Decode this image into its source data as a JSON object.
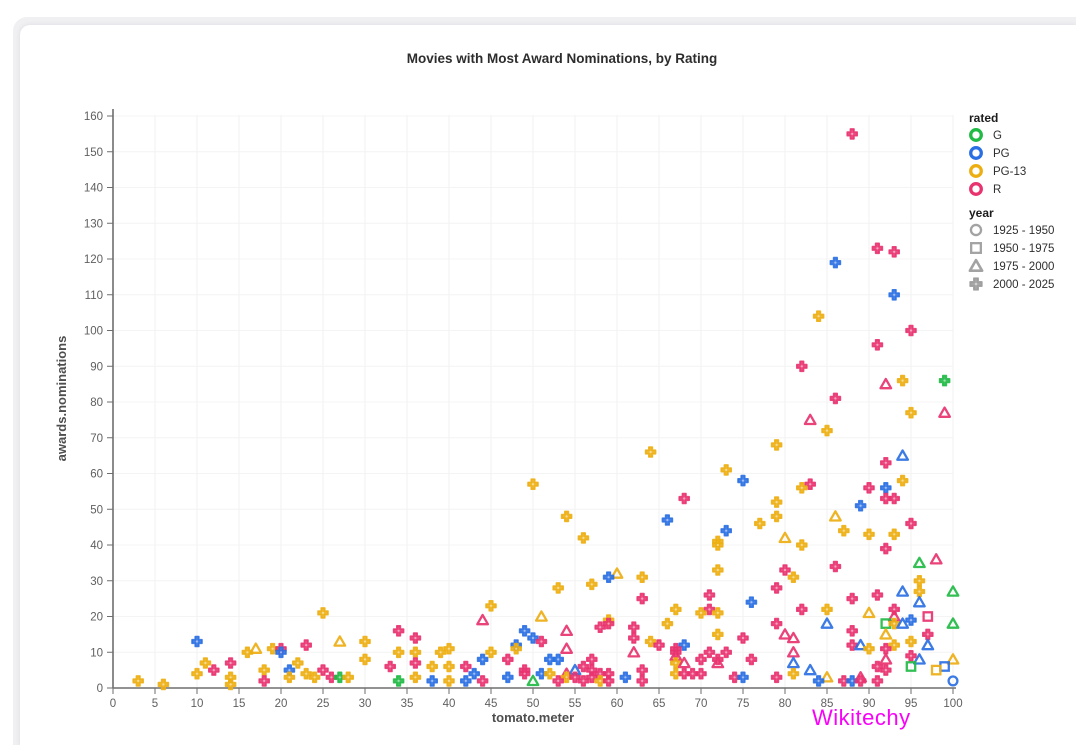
{
  "page": {
    "watermark": "Wikitechy",
    "watermark_color": "#f900f9"
  },
  "chart_data": {
    "type": "scatter",
    "title": "Movies with Most Award Nominations, by Rating",
    "xlabel": "tomato.meter",
    "ylabel": "awards.nominations",
    "xlim": [
      0,
      100
    ],
    "ylim": [
      0,
      160
    ],
    "xticks": [
      0,
      5,
      10,
      15,
      20,
      25,
      30,
      35,
      40,
      45,
      50,
      55,
      60,
      65,
      70,
      75,
      80,
      85,
      90,
      95,
      100
    ],
    "yticks": [
      0,
      10,
      20,
      30,
      40,
      50,
      60,
      70,
      80,
      90,
      100,
      110,
      120,
      130,
      140,
      150,
      160
    ],
    "grid": true,
    "legend_position": "top-right",
    "legend": {
      "rated": {
        "title": "rated",
        "items": [
          {
            "label": "G",
            "color": "#21ba45"
          },
          {
            "label": "PG",
            "color": "#2b70e3"
          },
          {
            "label": "PG-13",
            "color": "#edae12"
          },
          {
            "label": "R",
            "color": "#e8336f"
          }
        ]
      },
      "year": {
        "title": "year",
        "marker_color": "#9b9b9b",
        "items": [
          {
            "label": "1925 - 1950",
            "shape": "circle",
            "key": "o"
          },
          {
            "label": "1950 - 1975",
            "shape": "square",
            "key": "s"
          },
          {
            "label": "1975 - 2000",
            "shape": "triangle",
            "key": "t"
          },
          {
            "label": "2000 - 2025",
            "shape": "cross",
            "key": "c"
          }
        ]
      }
    },
    "points": [
      [
        88,
        155,
        "R",
        "c"
      ],
      [
        91,
        123,
        "R",
        "c"
      ],
      [
        93,
        122,
        "R",
        "c"
      ],
      [
        86,
        119,
        "PG",
        "c"
      ],
      [
        93,
        110,
        "PG",
        "c"
      ],
      [
        84,
        104,
        "PG-13",
        "c"
      ],
      [
        95,
        100,
        "R",
        "c"
      ],
      [
        91,
        96,
        "R",
        "c"
      ],
      [
        82,
        90,
        "R",
        "c"
      ],
      [
        99,
        86,
        "G",
        "c"
      ],
      [
        94,
        86,
        "PG-13",
        "c"
      ],
      [
        92,
        85,
        "R",
        "t"
      ],
      [
        86,
        81,
        "R",
        "c"
      ],
      [
        95,
        77,
        "PG-13",
        "c"
      ],
      [
        99,
        77,
        "R",
        "t"
      ],
      [
        83,
        75,
        "R",
        "t"
      ],
      [
        85,
        72,
        "PG-13",
        "c"
      ],
      [
        79,
        68,
        "PG-13",
        "c"
      ],
      [
        64,
        66,
        "PG-13",
        "c"
      ],
      [
        94,
        65,
        "PG",
        "t"
      ],
      [
        92,
        63,
        "R",
        "c"
      ],
      [
        73,
        61,
        "PG-13",
        "c"
      ],
      [
        75,
        58,
        "PG",
        "c"
      ],
      [
        94,
        58,
        "PG-13",
        "c"
      ],
      [
        83,
        57,
        "R",
        "c"
      ],
      [
        50,
        57,
        "PG-13",
        "c"
      ],
      [
        82,
        56,
        "PG-13",
        "c"
      ],
      [
        90,
        56,
        "R",
        "c"
      ],
      [
        92,
        56,
        "PG",
        "c"
      ],
      [
        92,
        53,
        "R",
        "c"
      ],
      [
        93,
        53,
        "R",
        "c"
      ],
      [
        68,
        53,
        "R",
        "c"
      ],
      [
        89,
        51,
        "PG",
        "c"
      ],
      [
        79,
        52,
        "PG-13",
        "c"
      ],
      [
        79,
        48,
        "PG-13",
        "c"
      ],
      [
        54,
        48,
        "PG-13",
        "c"
      ],
      [
        86,
        48,
        "PG-13",
        "t"
      ],
      [
        66,
        47,
        "PG",
        "c"
      ],
      [
        77,
        46,
        "PG-13",
        "c"
      ],
      [
        95,
        46,
        "R",
        "c"
      ],
      [
        73,
        44,
        "PG",
        "c"
      ],
      [
        87,
        44,
        "PG-13",
        "c"
      ],
      [
        90,
        43,
        "PG-13",
        "c"
      ],
      [
        93,
        43,
        "PG-13",
        "c"
      ],
      [
        56,
        42,
        "PG-13",
        "c"
      ],
      [
        80,
        42,
        "PG-13",
        "t"
      ],
      [
        72,
        41,
        "PG-13",
        "c"
      ],
      [
        72,
        40,
        "PG-13",
        "c"
      ],
      [
        82,
        40,
        "PG-13",
        "c"
      ],
      [
        92,
        39,
        "R",
        "c"
      ],
      [
        98,
        36,
        "R",
        "t"
      ],
      [
        96,
        35,
        "G",
        "t"
      ],
      [
        86,
        34,
        "R",
        "c"
      ],
      [
        80,
        33,
        "R",
        "c"
      ],
      [
        72,
        33,
        "PG-13",
        "c"
      ],
      [
        60,
        32,
        "PG-13",
        "t"
      ],
      [
        59,
        31,
        "PG",
        "c"
      ],
      [
        63,
        31,
        "PG-13",
        "c"
      ],
      [
        81,
        31,
        "PG-13",
        "c"
      ],
      [
        96,
        30,
        "PG-13",
        "c"
      ],
      [
        57,
        29,
        "PG-13",
        "c"
      ],
      [
        53,
        28,
        "PG-13",
        "c"
      ],
      [
        79,
        28,
        "R",
        "c"
      ],
      [
        100,
        27,
        "G",
        "t"
      ],
      [
        94,
        27,
        "PG",
        "t"
      ],
      [
        96,
        27,
        "PG-13",
        "c"
      ],
      [
        71,
        26,
        "R",
        "c"
      ],
      [
        91,
        26,
        "R",
        "c"
      ],
      [
        63,
        25,
        "R",
        "c"
      ],
      [
        88,
        25,
        "R",
        "c"
      ],
      [
        76,
        24,
        "PG",
        "c"
      ],
      [
        96,
        24,
        "PG",
        "t"
      ],
      [
        45,
        23,
        "PG-13",
        "c"
      ],
      [
        93,
        22,
        "R",
        "c"
      ],
      [
        85,
        22,
        "PG-13",
        "c"
      ],
      [
        82,
        22,
        "R",
        "c"
      ],
      [
        71,
        22,
        "R",
        "c"
      ],
      [
        67,
        22,
        "PG-13",
        "c"
      ],
      [
        70,
        21,
        "PG-13",
        "c"
      ],
      [
        72,
        21,
        "PG-13",
        "c"
      ],
      [
        25,
        21,
        "PG-13",
        "c"
      ],
      [
        90,
        21,
        "PG-13",
        "t"
      ],
      [
        51,
        20,
        "PG-13",
        "t"
      ],
      [
        93,
        20,
        "R",
        "t"
      ],
      [
        97,
        20,
        "R",
        "s"
      ],
      [
        95,
        19,
        "PG",
        "c"
      ],
      [
        44,
        19,
        "R",
        "t"
      ],
      [
        59,
        19,
        "PG-13",
        "c"
      ],
      [
        59,
        18,
        "R",
        "c"
      ],
      [
        58,
        17,
        "R",
        "c"
      ],
      [
        66,
        18,
        "PG-13",
        "c"
      ],
      [
        79,
        18,
        "R",
        "c"
      ],
      [
        85,
        18,
        "PG",
        "t"
      ],
      [
        92,
        18,
        "G",
        "s"
      ],
      [
        93,
        18,
        "PG-13",
        "c"
      ],
      [
        94,
        18,
        "PG",
        "t"
      ],
      [
        100,
        18,
        "G",
        "t"
      ],
      [
        62,
        17,
        "R",
        "c"
      ],
      [
        49,
        16,
        "PG",
        "c"
      ],
      [
        54,
        16,
        "R",
        "t"
      ],
      [
        34,
        16,
        "R",
        "c"
      ],
      [
        88,
        16,
        "R",
        "c"
      ],
      [
        92,
        15,
        "PG-13",
        "t"
      ],
      [
        80,
        15,
        "R",
        "t"
      ],
      [
        72,
        15,
        "PG-13",
        "c"
      ],
      [
        97,
        15,
        "R",
        "c"
      ],
      [
        50,
        14,
        "PG",
        "c"
      ],
      [
        36,
        14,
        "R",
        "c"
      ],
      [
        62,
        14,
        "R",
        "c"
      ],
      [
        75,
        14,
        "R",
        "c"
      ],
      [
        81,
        14,
        "R",
        "t"
      ],
      [
        64,
        13,
        "PG-13",
        "c"
      ],
      [
        10,
        13,
        "PG",
        "c"
      ],
      [
        23,
        12,
        "R",
        "c"
      ],
      [
        27,
        13,
        "PG-13",
        "t"
      ],
      [
        30,
        13,
        "PG-13",
        "c"
      ],
      [
        51,
        13,
        "R",
        "c"
      ],
      [
        95,
        13,
        "PG-13",
        "c"
      ],
      [
        48,
        12,
        "PG",
        "c"
      ],
      [
        65,
        12,
        "R",
        "c"
      ],
      [
        68,
        12,
        "PG",
        "c"
      ],
      [
        88,
        12,
        "R",
        "c"
      ],
      [
        89,
        12,
        "PG",
        "t"
      ],
      [
        93,
        12,
        "PG-13",
        "c"
      ],
      [
        97,
        12,
        "PG",
        "t"
      ],
      [
        16,
        10,
        "PG-13",
        "c"
      ],
      [
        17,
        11,
        "PG-13",
        "t"
      ],
      [
        19,
        11,
        "PG-13",
        "c"
      ],
      [
        20,
        11,
        "R",
        "c"
      ],
      [
        40,
        11,
        "PG-13",
        "c"
      ],
      [
        48,
        11,
        "PG-13",
        "c"
      ],
      [
        54,
        11,
        "R",
        "t"
      ],
      [
        67,
        11,
        "R",
        "c"
      ],
      [
        90,
        11,
        "PG-13",
        "c"
      ],
      [
        92,
        11,
        "R",
        "c"
      ],
      [
        20,
        10,
        "PG",
        "c"
      ],
      [
        34,
        10,
        "PG-13",
        "c"
      ],
      [
        36,
        10,
        "PG-13",
        "c"
      ],
      [
        39,
        10,
        "PG-13",
        "c"
      ],
      [
        45,
        10,
        "PG-13",
        "c"
      ],
      [
        62,
        10,
        "R",
        "t"
      ],
      [
        67,
        10,
        "R",
        "c"
      ],
      [
        71,
        10,
        "R",
        "c"
      ],
      [
        73,
        10,
        "R",
        "c"
      ],
      [
        81,
        10,
        "R",
        "t"
      ],
      [
        11,
        7,
        "PG-13",
        "c"
      ],
      [
        14,
        7,
        "R",
        "c"
      ],
      [
        22,
        7,
        "PG-13",
        "c"
      ],
      [
        36,
        7,
        "R",
        "c"
      ],
      [
        47,
        8,
        "R",
        "c"
      ],
      [
        44,
        8,
        "PG",
        "c"
      ],
      [
        52,
        8,
        "PG",
        "c"
      ],
      [
        53,
        8,
        "PG",
        "c"
      ],
      [
        57,
        8,
        "R",
        "c"
      ],
      [
        30,
        8,
        "PG-13",
        "c"
      ],
      [
        70,
        8,
        "R",
        "c"
      ],
      [
        72,
        8,
        "R",
        "c"
      ],
      [
        76,
        8,
        "R",
        "c"
      ],
      [
        92,
        8,
        "R",
        "t"
      ],
      [
        96,
        8,
        "PG",
        "t"
      ],
      [
        100,
        8,
        "PG-13",
        "t"
      ],
      [
        67,
        9,
        "R",
        "t"
      ],
      [
        95,
        9,
        "R",
        "c"
      ],
      [
        12,
        5,
        "R",
        "c"
      ],
      [
        18,
        5,
        "PG-13",
        "c"
      ],
      [
        21,
        5,
        "PG",
        "c"
      ],
      [
        25,
        5,
        "R",
        "c"
      ],
      [
        38,
        6,
        "PG-13",
        "c"
      ],
      [
        40,
        6,
        "PG-13",
        "c"
      ],
      [
        42,
        6,
        "R",
        "c"
      ],
      [
        33,
        6,
        "R",
        "c"
      ],
      [
        49,
        5,
        "R",
        "c"
      ],
      [
        56,
        6,
        "R",
        "c"
      ],
      [
        91,
        6,
        "R",
        "c"
      ],
      [
        95,
        6,
        "G",
        "s"
      ],
      [
        99,
        6,
        "PG",
        "s"
      ],
      [
        55,
        5,
        "PG",
        "t"
      ],
      [
        57,
        5,
        "R",
        "c"
      ],
      [
        63,
        5,
        "R",
        "c"
      ],
      [
        67,
        7,
        "PG-13",
        "c"
      ],
      [
        68,
        7,
        "R",
        "t"
      ],
      [
        72,
        7,
        "R",
        "t"
      ],
      [
        81,
        7,
        "PG",
        "t"
      ],
      [
        92,
        5,
        "R",
        "c"
      ],
      [
        98,
        5,
        "PG-13",
        "s"
      ],
      [
        10,
        4,
        "PG-13",
        "c"
      ],
      [
        23,
        4,
        "PG-13",
        "c"
      ],
      [
        43,
        4,
        "PG",
        "c"
      ],
      [
        49,
        4,
        "R",
        "c"
      ],
      [
        51,
        4,
        "PG",
        "c"
      ],
      [
        52,
        4,
        "PG-13",
        "c"
      ],
      [
        54,
        4,
        "R",
        "t"
      ],
      [
        58,
        4,
        "R",
        "c"
      ],
      [
        59,
        4,
        "R",
        "c"
      ],
      [
        67,
        4,
        "PG-13",
        "c"
      ],
      [
        68,
        4,
        "R",
        "c"
      ],
      [
        69,
        4,
        "R",
        "c"
      ],
      [
        70,
        4,
        "R",
        "c"
      ],
      [
        81,
        4,
        "PG-13",
        "c"
      ],
      [
        83,
        5,
        "PG",
        "t"
      ],
      [
        14,
        3,
        "PG-13",
        "c"
      ],
      [
        21,
        3,
        "PG-13",
        "c"
      ],
      [
        24,
        3,
        "PG-13",
        "c"
      ],
      [
        26,
        3,
        "R",
        "c"
      ],
      [
        27,
        3,
        "G",
        "c"
      ],
      [
        28,
        3,
        "PG-13",
        "c"
      ],
      [
        36,
        3,
        "PG-13",
        "c"
      ],
      [
        47,
        3,
        "PG",
        "c"
      ],
      [
        54,
        3,
        "PG-13",
        "c"
      ],
      [
        55,
        3,
        "R",
        "c"
      ],
      [
        57,
        3,
        "R",
        "c"
      ],
      [
        61,
        3,
        "PG",
        "c"
      ],
      [
        74,
        3,
        "R",
        "c"
      ],
      [
        75,
        3,
        "PG",
        "c"
      ],
      [
        79,
        3,
        "R",
        "c"
      ],
      [
        85,
        3,
        "PG-13",
        "t"
      ],
      [
        89,
        3,
        "R",
        "t"
      ],
      [
        3,
        2,
        "PG-13",
        "c"
      ],
      [
        18,
        2,
        "R",
        "c"
      ],
      [
        34,
        2,
        "G",
        "c"
      ],
      [
        38,
        2,
        "PG",
        "c"
      ],
      [
        40,
        2,
        "PG-13",
        "c"
      ],
      [
        42,
        2,
        "PG",
        "c"
      ],
      [
        44,
        2,
        "R",
        "c"
      ],
      [
        50,
        2,
        "G",
        "t"
      ],
      [
        53,
        2,
        "R",
        "c"
      ],
      [
        56,
        2,
        "R",
        "c"
      ],
      [
        58,
        2,
        "PG-13",
        "c"
      ],
      [
        59,
        2,
        "R",
        "c"
      ],
      [
        63,
        2,
        "R",
        "c"
      ],
      [
        84,
        2,
        "PG",
        "c"
      ],
      [
        87,
        2,
        "R",
        "c"
      ],
      [
        88,
        2,
        "PG",
        "c"
      ],
      [
        89,
        2,
        "R",
        "c"
      ],
      [
        91,
        2,
        "R",
        "c"
      ],
      [
        100,
        2,
        "PG",
        "o"
      ],
      [
        6,
        1,
        "PG-13",
        "c"
      ],
      [
        14,
        1,
        "PG-13",
        "c"
      ]
    ]
  }
}
